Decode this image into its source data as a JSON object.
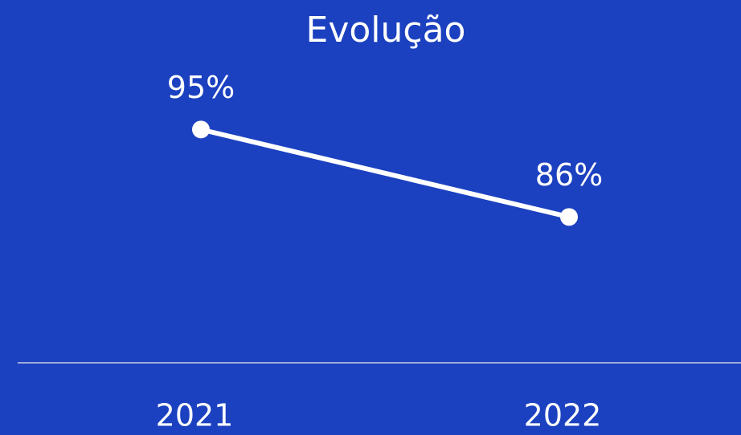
{
  "chart_data": {
    "type": "line",
    "title": "Evolução",
    "categories": [
      "2021",
      "2022"
    ],
    "series": [
      {
        "name": null,
        "color": "#ffffff",
        "values": [
          95,
          86
        ],
        "value_labels": [
          "95%",
          "86%"
        ]
      }
    ],
    "ylim": [
      71,
      98
    ]
  }
}
